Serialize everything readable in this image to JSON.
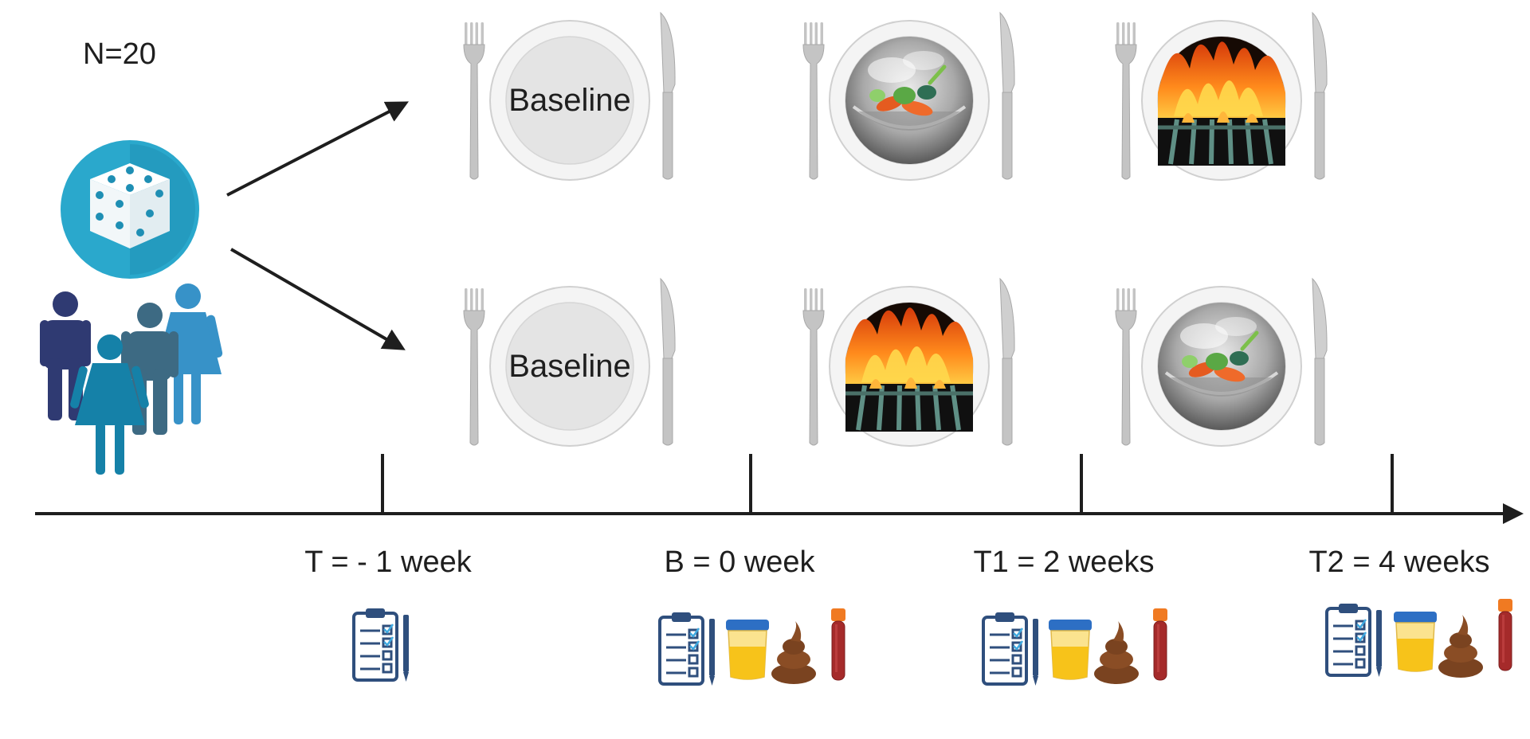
{
  "participants": {
    "count_label": "N=20"
  },
  "arms": [
    {
      "plates": [
        {
          "content": "baseline",
          "label": "Baseline"
        },
        {
          "content": "steamed-vegetables"
        },
        {
          "content": "grill-fire"
        }
      ]
    },
    {
      "plates": [
        {
          "content": "baseline",
          "label": "Baseline"
        },
        {
          "content": "grill-fire"
        },
        {
          "content": "steamed-vegetables"
        }
      ]
    }
  ],
  "timeline": {
    "timepoints": [
      {
        "label": "T = - 1 week",
        "samples": [
          "questionnaire-icon"
        ]
      },
      {
        "label": "B = 0 week",
        "samples": [
          "questionnaire-icon",
          "urine-cup-icon",
          "stool-icon",
          "blood-tube-icon"
        ]
      },
      {
        "label": "T1 = 2 weeks",
        "samples": [
          "questionnaire-icon",
          "urine-cup-icon",
          "stool-icon",
          "blood-tube-icon"
        ]
      },
      {
        "label": "T2 = 4 weeks",
        "samples": [
          "questionnaire-icon",
          "urine-cup-icon",
          "stool-icon",
          "blood-tube-icon"
        ]
      }
    ]
  },
  "colors": {
    "dice_circle": "#2aa8cc",
    "people": [
      "#2f3a72",
      "#1581a8",
      "#3d6a83",
      "#3792c8"
    ],
    "timeline": "#1e1e1e",
    "plate": "#eeeeee",
    "cutlery": "#c4c4c4",
    "fire": "#ff7a1a",
    "urine": "#f7c31a",
    "stool": "#7a4320",
    "blood": "#a52a2a",
    "clipboard": "#2f4f7d"
  }
}
